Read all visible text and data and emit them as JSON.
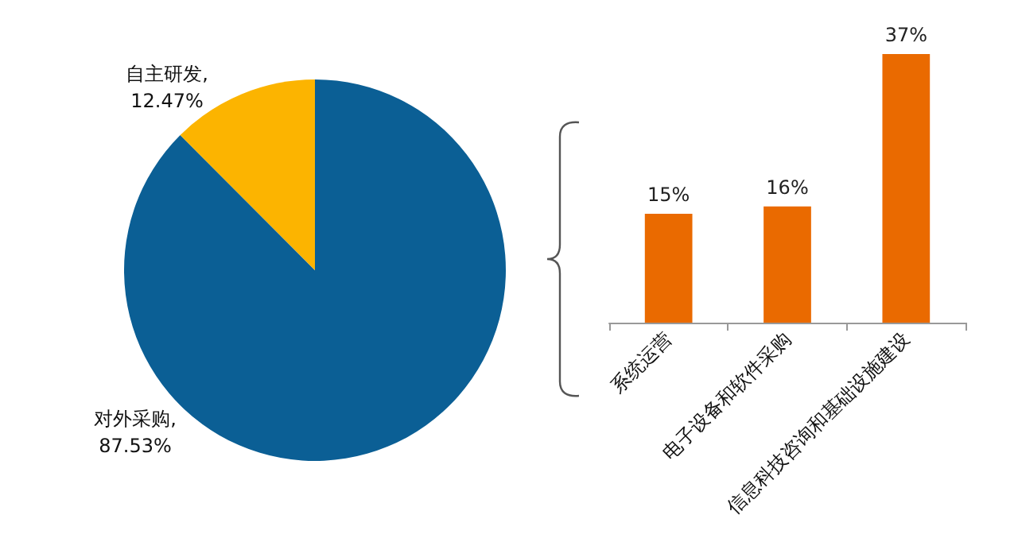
{
  "chart_data": [
    {
      "type": "pie",
      "categories": [
        "对外采购",
        "自主研发"
      ],
      "values": [
        87.53,
        12.47
      ],
      "colors": [
        "#0b5f95",
        "#fcb400"
      ],
      "value_labels": [
        ",87.53%",
        ",12.47%"
      ]
    },
    {
      "type": "bar",
      "categories": [
        "系统运营",
        "电子设备和软件采购",
        "信息科技咨询和基础设施建设"
      ],
      "values": [
        15,
        16,
        37
      ],
      "color": "#ea6a00",
      "value_labels": [
        "15%",
        "16%",
        "37%"
      ]
    }
  ]
}
